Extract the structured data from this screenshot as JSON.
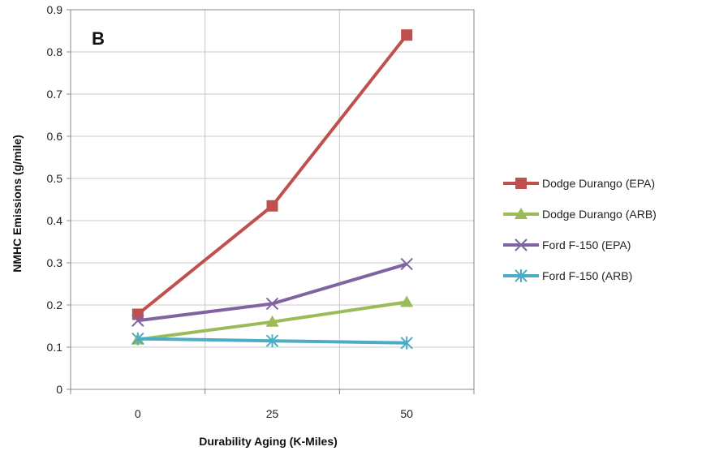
{
  "chart_data": {
    "type": "line",
    "panel_label": "B",
    "xlabel": "Durability Aging (K-Miles)",
    "ylabel": "NMHC Emissions  (g/mile)",
    "categories": [
      "0",
      "25",
      "50"
    ],
    "ylim": [
      0,
      0.9
    ],
    "yticks": [
      "0",
      "0.1",
      "0.2",
      "0.3",
      "0.4",
      "0.5",
      "0.6",
      "0.7",
      "0.8",
      "0.9"
    ],
    "grid": true,
    "legend_position": "right",
    "series": [
      {
        "name": "Dodge Durango (EPA)",
        "values": [
          0.178,
          0.435,
          0.84
        ],
        "color": "#c0504d",
        "marker": "square"
      },
      {
        "name": "Dodge Durango (ARB)",
        "values": [
          0.118,
          0.16,
          0.207
        ],
        "color": "#9bbb59",
        "marker": "triangle"
      },
      {
        "name": "Ford F-150 (EPA)",
        "values": [
          0.163,
          0.203,
          0.297
        ],
        "color": "#8064a2",
        "marker": "x"
      },
      {
        "name": "Ford F-150 (ARB)",
        "values": [
          0.12,
          0.115,
          0.11
        ],
        "color": "#4bacc6",
        "marker": "star"
      }
    ]
  }
}
